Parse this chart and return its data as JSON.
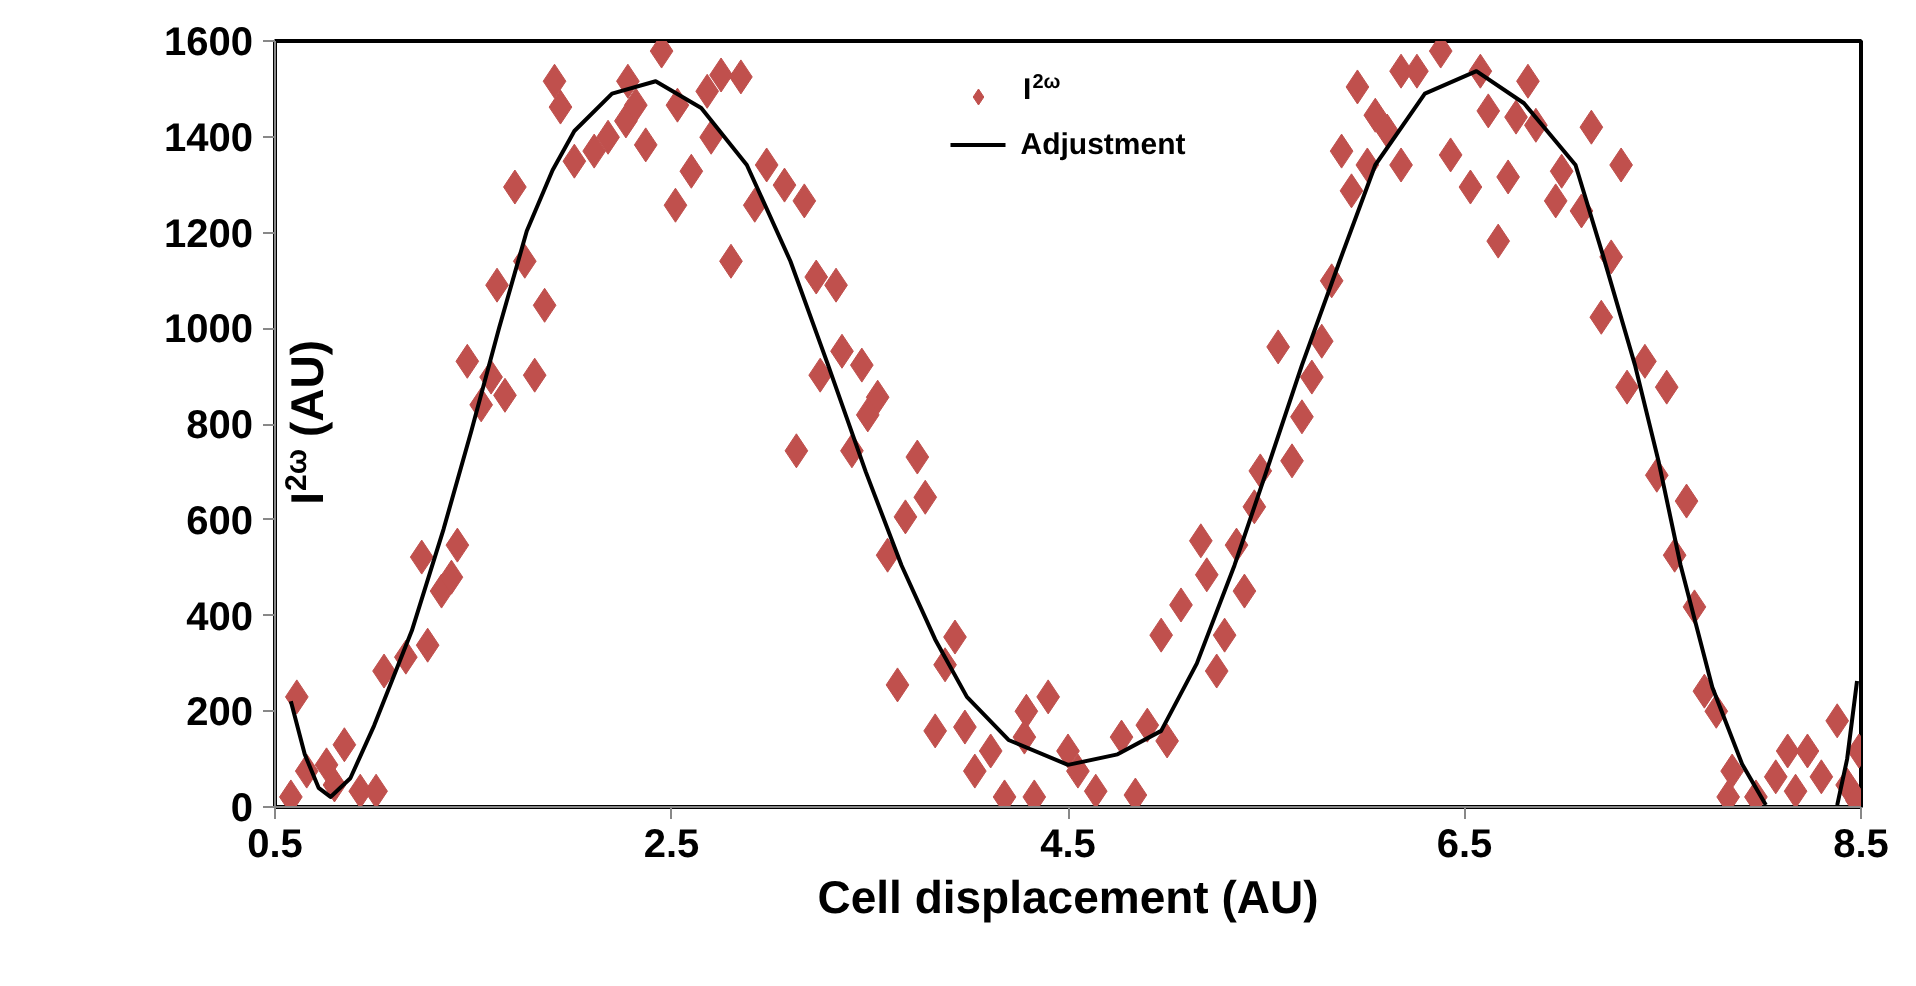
{
  "chart_data": {
    "type": "scatter",
    "xlabel": "Cell displacement (AU)",
    "ylabel": "I$^{2ω}$ (AU)",
    "xlim": [
      0.5,
      8.5
    ],
    "xticks": [
      0.5,
      2.5,
      4.5,
      6.5,
      8.5
    ],
    "ylim": [
      0,
      1600
    ],
    "yticks": [
      0,
      200,
      400,
      600,
      800,
      1000,
      1200,
      1400,
      1600
    ],
    "grid": false,
    "legend": "top",
    "series": [
      {
        "name": "I$^{2ω}$",
        "color": "#c0504d",
        "marker": "diamond",
        "x": [
          0.61,
          0.58,
          0.66,
          0.76,
          0.85,
          0.8,
          0.93,
          1.01,
          1.05,
          1.16,
          1.27,
          1.24,
          1.42,
          1.34,
          1.39,
          1.47,
          1.54,
          1.66,
          1.59,
          1.81,
          1.62,
          1.76,
          1.86,
          1.71,
          1.91,
          1.94,
          2.01,
          2.11,
          2.18,
          2.27,
          2.28,
          2.37,
          2.45,
          2.52,
          2.32,
          2.75,
          2.85,
          2.68,
          2.53,
          2.7,
          2.6,
          2.98,
          3.07,
          3.17,
          2.92,
          2.8,
          3.23,
          3.33,
          3.36,
          3.46,
          3.25,
          3.54,
          3.49,
          3.13,
          3.41,
          3.74,
          3.78,
          3.68,
          3.59,
          3.93,
          3.88,
          3.64,
          3.83,
          3.98,
          4.11,
          4.03,
          4.18,
          4.29,
          4.4,
          4.28,
          4.33,
          4.5,
          4.55,
          4.64,
          4.84,
          4.77,
          4.9,
          5.0,
          4.97,
          5.07,
          5.25,
          5.29,
          5.39,
          5.17,
          5.2,
          5.35,
          5.44,
          5.47,
          5.63,
          5.68,
          5.73,
          5.78,
          5.56,
          5.83,
          5.88,
          5.93,
          6.01,
          6.05,
          5.96,
          6.18,
          6.26,
          6.38,
          6.18,
          6.11,
          6.43,
          6.53,
          6.58,
          6.82,
          6.62,
          6.76,
          6.86,
          7.14,
          6.72,
          6.99,
          7.29,
          6.96,
          7.09,
          6.67,
          7.24,
          7.19,
          7.41,
          7.32,
          7.52,
          7.47,
          7.62,
          7.56,
          7.66,
          7.71,
          7.77,
          7.85,
          7.83,
          7.97,
          8.07,
          8.13,
          8.23,
          8.17,
          8.3,
          8.38,
          8.43,
          8.49,
          8.48
        ],
        "values": [
          230,
          21,
          75,
          88,
          130,
          46,
          33,
          33,
          284,
          313,
          338,
          522,
          547,
          451,
          480,
          931,
          840,
          860,
          898,
          902,
          1090,
          1140,
          1048,
          1295,
          1516,
          1462,
          1349,
          1370,
          1399,
          1433,
          1516,
          1383,
          1579,
          1257,
          1466,
          1529,
          1525,
          1495,
          1466,
          1399,
          1328,
          1341,
          1299,
          1266,
          1257,
          1140,
          1107,
          1090,
          952,
          923,
          902,
          856,
          819,
          744,
          744,
          731,
          647,
          606,
          526,
          355,
          297,
          255,
          159,
          167,
          117,
          75,
          21,
          200,
          230,
          146,
          21,
          117,
          75,
          33,
          25,
          146,
          171,
          138,
          359,
          422,
          284,
          359,
          451,
          556,
          485,
          547,
          627,
          702,
          723,
          815,
          898,
          973,
          961,
          1099,
          1370,
          1287,
          1341,
          1445,
          1504,
          1537,
          1537,
          1579,
          1341,
          1412,
          1362,
          1295,
          1537,
          1516,
          1454,
          1441,
          1424,
          1420,
          1316,
          1328,
          1341,
          1266,
          1245,
          1182,
          1149,
          1023,
          931,
          877,
          877,
          693,
          639,
          526,
          418,
          242,
          200,
          75,
          21,
          21,
          63,
          117,
          117,
          33,
          63,
          180,
          46,
          117,
          13
        ]
      },
      {
        "name": "Adjustment",
        "type": "line",
        "color": "#000000",
        "line_style": "solid",
        "marker": "none",
        "x": [
          0.58,
          0.65,
          0.72,
          0.78,
          0.88,
          1.0,
          1.19,
          1.35,
          1.49,
          1.63,
          1.77,
          1.9,
          2.01,
          2.2,
          2.42,
          2.65,
          2.88,
          3.1,
          3.29,
          3.48,
          3.66,
          3.83,
          3.99,
          4.2,
          4.5,
          4.75,
          4.97,
          5.15,
          5.34,
          5.5,
          5.68,
          5.87,
          6.05,
          6.3,
          6.56,
          6.8,
          7.06,
          7.2,
          7.36,
          7.48,
          7.59,
          7.75,
          7.9,
          8.02,
          8.2,
          8.38,
          8.43,
          8.48
        ],
        "values": [
          221,
          110,
          40,
          21,
          60,
          170,
          368,
          580,
          785,
          1000,
          1203,
          1330,
          1412,
          1490,
          1516,
          1460,
          1341,
          1140,
          923,
          700,
          505,
          350,
          230,
          140,
          88,
          110,
          159,
          300,
          505,
          700,
          923,
          1140,
          1341,
          1490,
          1537,
          1470,
          1341,
          1150,
          923,
          720,
          505,
          250,
          90,
          4,
          null,
          4,
          100,
          263
        ]
      }
    ]
  }
}
